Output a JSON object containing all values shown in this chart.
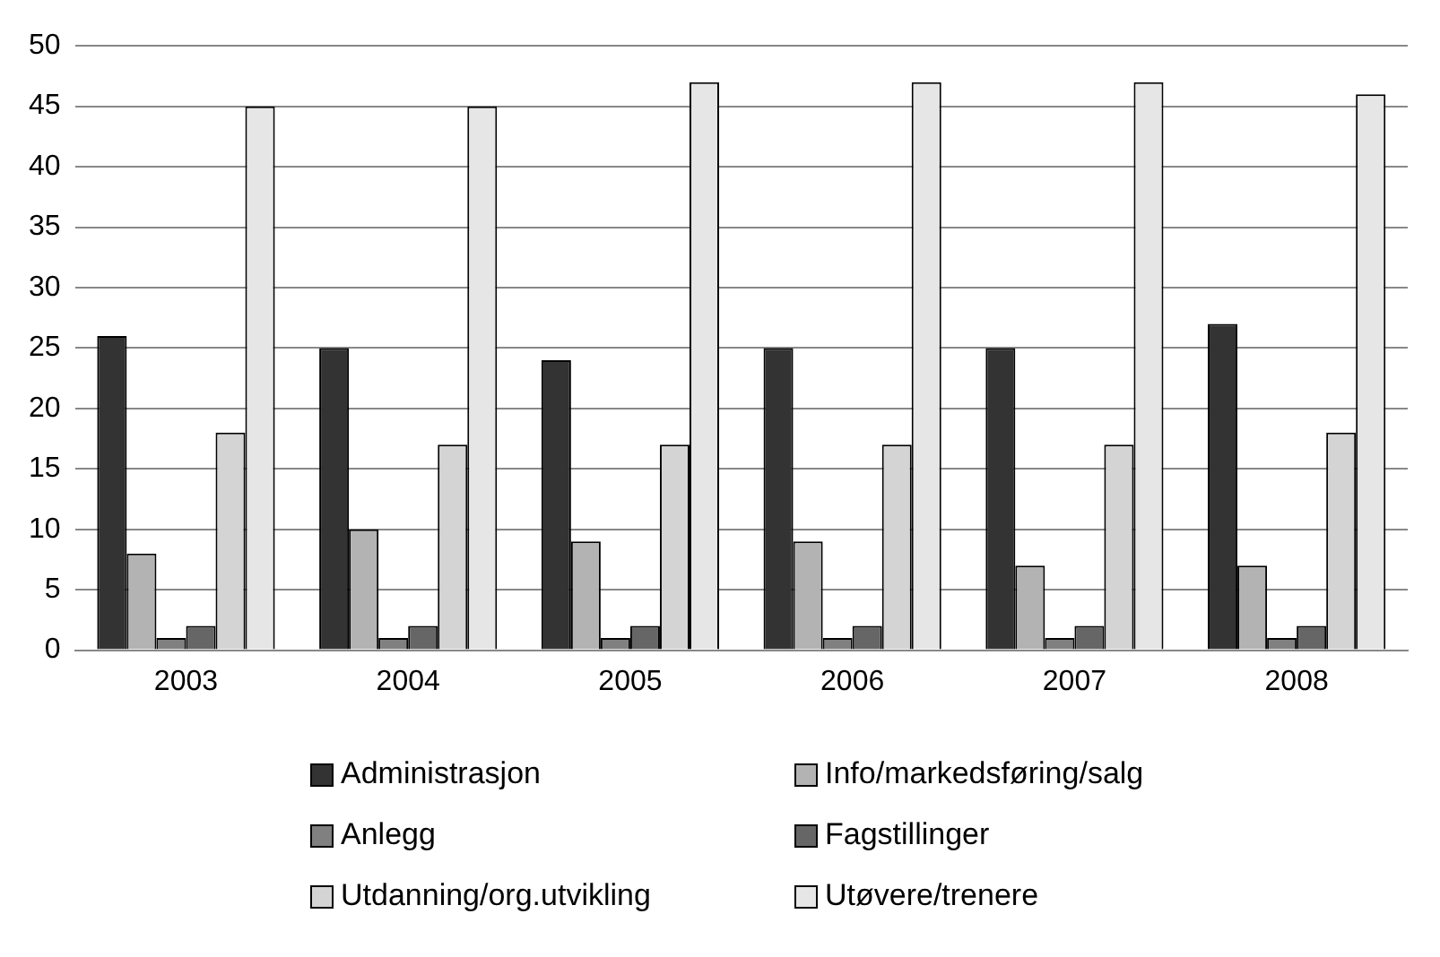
{
  "chart_data": {
    "type": "bar",
    "categories": [
      "2003",
      "2004",
      "2005",
      "2006",
      "2007",
      "2008"
    ],
    "series": [
      {
        "name": "Administrasjon",
        "color": "#333333",
        "values": [
          26,
          25,
          24,
          25,
          25,
          27
        ]
      },
      {
        "name": "Info/markedsføring/salg",
        "color": "#b3b3b3",
        "values": [
          8,
          10,
          9,
          9,
          7,
          7
        ]
      },
      {
        "name": "Anlegg",
        "color": "#808080",
        "values": [
          1,
          1,
          1,
          1,
          1,
          1
        ]
      },
      {
        "name": "Fagstillinger",
        "color": "#666666",
        "values": [
          2,
          2,
          2,
          2,
          2,
          2
        ]
      },
      {
        "name": "Utdanning/org.utvikling",
        "color": "#d4d4d4",
        "values": [
          18,
          17,
          17,
          17,
          17,
          18
        ]
      },
      {
        "name": "Utøvere/trenere",
        "color": "#e6e6e6",
        "values": [
          45,
          45,
          47,
          47,
          47,
          46
        ]
      }
    ],
    "ylim": [
      0,
      50
    ],
    "yticks": [
      0,
      5,
      10,
      15,
      20,
      25,
      30,
      35,
      40,
      45,
      50
    ],
    "grid": "y",
    "legend": "bottom"
  }
}
